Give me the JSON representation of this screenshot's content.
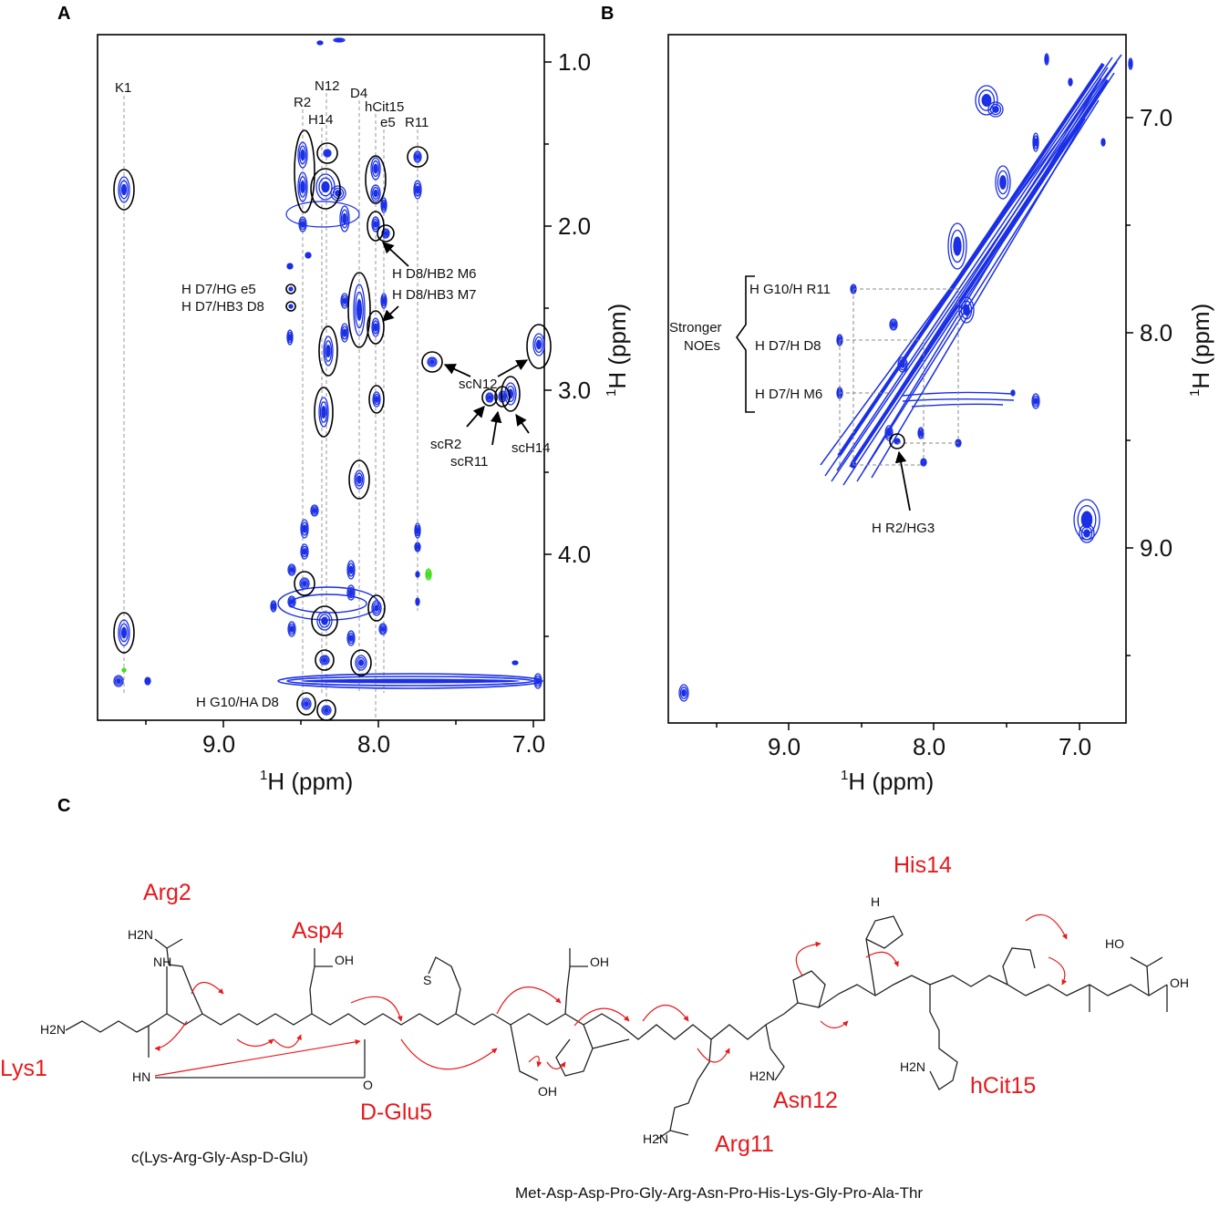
{
  "colors": {
    "contour": "#1a2fe6",
    "negative_contour": "#44dd22",
    "highlight_circle": "#000000",
    "residue_label": "#e8191c",
    "noe_arrow": "#e8191c"
  },
  "panel_a": {
    "letter": "A",
    "x_ticks": [
      "9.0",
      "8.0",
      "7.0"
    ],
    "y_ticks": [
      "1.0",
      "2.0",
      "3.0",
      "4.0"
    ],
    "x_axis_title_sup": "1",
    "x_axis_title_text": "H (ppm)",
    "y_axis_title_sup": "1",
    "y_axis_title_text": "H (ppm)",
    "residue_columns": [
      "K1",
      "R2",
      "N12",
      "H14",
      "D4",
      "hCit15",
      "e5",
      "R11"
    ],
    "annotations": [
      "H D8/HB2 M6",
      "H D8/HB3 M7",
      "H D7/HG e5",
      "H D7/HB3 D8",
      "scN12",
      "scR2",
      "scR11",
      "scH14",
      "H G10/HA D8"
    ]
  },
  "panel_b": {
    "letter": "B",
    "x_ticks": [
      "9.0",
      "8.0",
      "7.0"
    ],
    "y_ticks": [
      "7.0",
      "8.0",
      "9.0"
    ],
    "x_axis_title_sup": "1",
    "x_axis_title_text": "H (ppm)",
    "y_axis_title_sup": "1",
    "y_axis_title_text": "H (ppm)",
    "bracket_label_line1": "Stronger",
    "bracket_label_line2": "NOEs",
    "noe_labels": [
      "H G10/H R11",
      "H D7/H D8",
      "H D7/H M6"
    ],
    "arrow_label": "H R2/HG3"
  },
  "panel_c": {
    "letter": "C",
    "residues": [
      "Arg2",
      "Asp4",
      "Lys1",
      "D-Glu5",
      "His14",
      "Asn12",
      "hCit15",
      "Arg11"
    ],
    "cyclic_sequence": "c(Lys-Arg-Gly-Asp-D-Glu)",
    "linear_sequence": "Met-Asp-Asp-Pro-Gly-Arg-Asn-Pro-His-Lys-Gly-Pro-Ala-Thr",
    "atoms": [
      "H2N",
      "NH",
      "N",
      "H",
      "O",
      "OH",
      "S",
      "HN",
      "NH2",
      "H2N",
      "HO"
    ]
  }
}
